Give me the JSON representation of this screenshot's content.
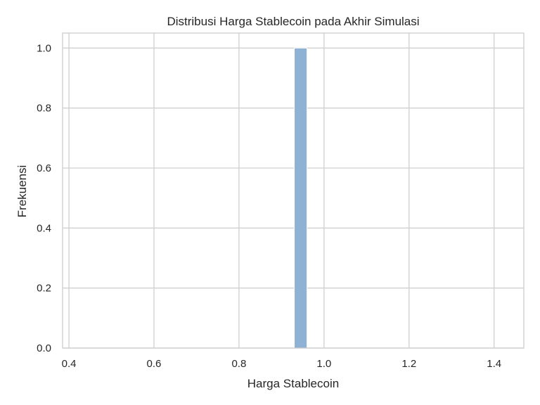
{
  "chart_data": {
    "type": "bar",
    "title": "Distribusi Harga Stablecoin pada Akhir Simulasi",
    "xlabel": "Harga Stablecoin",
    "ylabel": "Frekuensi",
    "xlim": [
      0.385,
      1.47
    ],
    "ylim": [
      0,
      1.05
    ],
    "xticks": [
      "0.4",
      "0.6",
      "0.8",
      "1.0",
      "1.2",
      "1.4"
    ],
    "yticks": [
      "0.0",
      "0.2",
      "0.4",
      "0.6",
      "0.8",
      "1.0"
    ],
    "bins": [
      {
        "x0": 0.93,
        "x1": 0.96,
        "count": 1
      }
    ],
    "grid": true,
    "bar_color": "#8fb2d4",
    "edge_color": "#ffffff"
  }
}
